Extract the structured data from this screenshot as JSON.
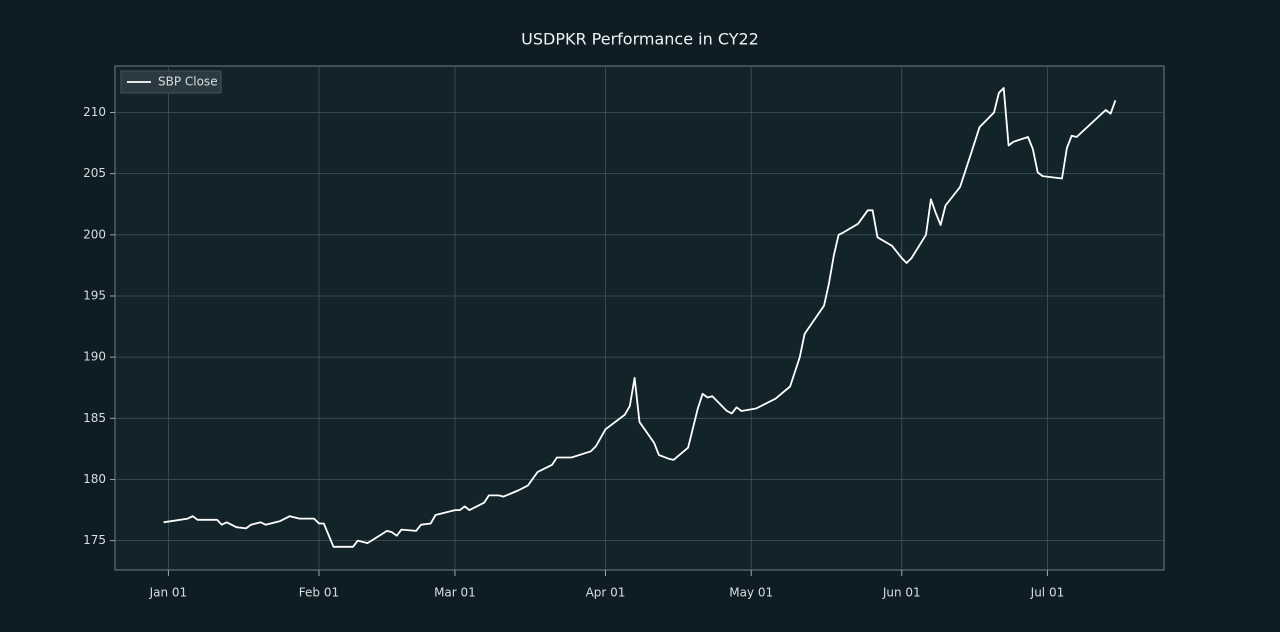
{
  "chart_data": {
    "type": "line",
    "title": "USDPKR Performance in CY22",
    "x": [
      "12-31",
      "01-05",
      "01-06",
      "01-07",
      "01-11",
      "01-12",
      "01-13",
      "01-15",
      "01-17",
      "01-18",
      "01-20",
      "01-21",
      "01-24",
      "01-26",
      "01-28",
      "01-31",
      "02-01",
      "02-02",
      "02-04",
      "02-08",
      "02-09",
      "02-11",
      "02-15",
      "02-16",
      "02-17",
      "02-18",
      "02-21",
      "02-22",
      "02-24",
      "02-25",
      "03-01",
      "03-02",
      "03-03",
      "03-04",
      "03-07",
      "03-08",
      "03-10",
      "03-11",
      "03-14",
      "03-16",
      "03-18",
      "03-21",
      "03-22",
      "03-25",
      "03-29",
      "03-30",
      "04-01",
      "04-05",
      "04-06",
      "04-07",
      "04-08",
      "04-11",
      "04-12",
      "04-14",
      "04-15",
      "04-18",
      "04-20",
      "04-21",
      "04-22",
      "04-23",
      "04-26",
      "04-27",
      "04-28",
      "04-29",
      "05-02",
      "05-06",
      "05-09",
      "05-11",
      "05-12",
      "05-16",
      "05-17",
      "05-18",
      "05-19",
      "05-20",
      "05-23",
      "05-25",
      "05-26",
      "05-27",
      "05-30",
      "06-01",
      "06-02",
      "06-03",
      "06-06",
      "06-07",
      "06-08",
      "06-09",
      "06-10",
      "06-13",
      "06-15",
      "06-17",
      "06-20",
      "06-21",
      "06-22",
      "06-23",
      "06-24",
      "06-27",
      "06-28",
      "06-29",
      "06-30",
      "07-04",
      "07-05",
      "07-06",
      "07-07",
      "07-13",
      "07-14",
      "07-15"
    ],
    "series": [
      {
        "name": "SBP Close",
        "color": "#ffffff",
        "values": [
          176.5,
          176.8,
          177.0,
          176.7,
          176.7,
          176.3,
          176.5,
          176.1,
          176.0,
          176.3,
          176.5,
          176.3,
          176.6,
          177.0,
          176.8,
          176.8,
          176.4,
          176.4,
          174.5,
          174.5,
          175.0,
          174.8,
          175.8,
          175.7,
          175.4,
          175.9,
          175.8,
          176.3,
          176.4,
          177.1,
          177.5,
          177.5,
          177.8,
          177.5,
          178.1,
          178.7,
          178.7,
          178.6,
          179.1,
          179.5,
          180.6,
          181.2,
          181.8,
          181.8,
          182.3,
          182.7,
          184.1,
          185.3,
          186.0,
          188.3,
          184.7,
          183.0,
          182.0,
          181.7,
          181.6,
          182.6,
          185.8,
          187.0,
          186.7,
          186.8,
          185.6,
          185.4,
          185.9,
          185.6,
          185.8,
          186.6,
          187.6,
          190.0,
          191.9,
          194.2,
          196.0,
          198.3,
          200.0,
          200.2,
          200.9,
          202.0,
          202.0,
          199.8,
          199.1,
          198.1,
          197.7,
          198.1,
          200.0,
          202.9,
          201.8,
          200.8,
          202.4,
          203.9,
          206.3,
          208.8,
          210.0,
          211.6,
          212.0,
          207.3,
          207.6,
          208.0,
          207.0,
          205.1,
          204.8,
          204.6,
          207.1,
          208.1,
          208.0,
          210.2,
          209.9,
          211.0
        ]
      }
    ],
    "xlim": [
      "12-21",
      "07-25"
    ],
    "xticks": [
      {
        "value": "01-01",
        "label": "Jan 01"
      },
      {
        "value": "02-01",
        "label": "Feb 01"
      },
      {
        "value": "03-01",
        "label": "Mar 01"
      },
      {
        "value": "04-01",
        "label": "Apr 01"
      },
      {
        "value": "05-01",
        "label": "May 01"
      },
      {
        "value": "06-01",
        "label": "Jun 01"
      },
      {
        "value": "07-01",
        "label": "Jul 01"
      }
    ],
    "ylim": [
      172.6,
      213.8
    ],
    "yticks": [
      175,
      180,
      185,
      190,
      195,
      200,
      205,
      210
    ],
    "grid": true,
    "legend": "upper-left"
  }
}
